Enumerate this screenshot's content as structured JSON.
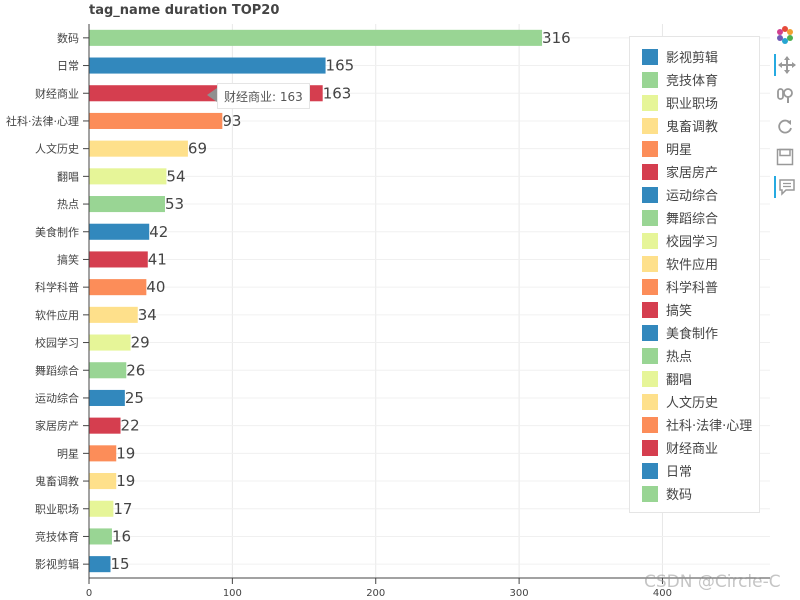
{
  "chart_data": {
    "type": "bar",
    "orientation": "horizontal",
    "title": "tag_name duration TOP20",
    "categories": [
      "影视剪辑",
      "竞技体育",
      "职业职场",
      "鬼畜调教",
      "明星",
      "家居房产",
      "运动综合",
      "舞蹈综合",
      "校园学习",
      "软件应用",
      "科学科普",
      "搞笑",
      "美食制作",
      "热点",
      "翻唱",
      "人文历史",
      "社科·法律·心理",
      "财经商业",
      "日常",
      "数码"
    ],
    "values": [
      15,
      16,
      17,
      19,
      19,
      22,
      25,
      26,
      29,
      34,
      40,
      41,
      42,
      53,
      54,
      69,
      93,
      163,
      165,
      316
    ],
    "colors": [
      "#3288bd",
      "#99d594",
      "#e6f598",
      "#fee08b",
      "#fc8d59",
      "#d53e4f",
      "#3288bd",
      "#99d594",
      "#e6f598",
      "#fee08b",
      "#fc8d59",
      "#d53e4f",
      "#3288bd",
      "#99d594",
      "#e6f598",
      "#fee08b",
      "#fc8d59",
      "#d53e4f",
      "#3288bd",
      "#99d594"
    ],
    "xlim": [
      0,
      475
    ],
    "xticks": [
      0,
      100,
      200,
      300,
      400
    ],
    "grid": true,
    "legend_position": "top-right"
  },
  "tooltip": {
    "text": "财经商业: 163"
  },
  "toolbar": {
    "logo_icon": "bokeh-logo-icon",
    "pan_icon": "pan-icon",
    "wheel_zoom_icon": "wheel-zoom-icon",
    "reset_icon": "reset-icon",
    "save_icon": "save-icon",
    "hover_icon": "hover-icon"
  },
  "watermark": "CSDN @Circle-C"
}
